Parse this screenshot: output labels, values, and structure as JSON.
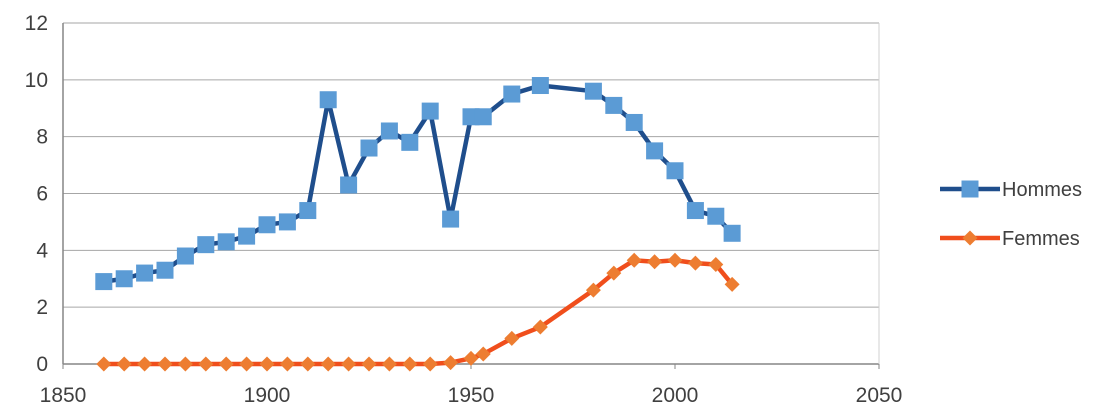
{
  "chart_data": {
    "type": "line",
    "xlim": [
      1850,
      2050
    ],
    "ylim": [
      0,
      12
    ],
    "x_ticks": [
      1850,
      1900,
      1950,
      2000,
      2050
    ],
    "y_ticks": [
      0,
      2,
      4,
      6,
      8,
      10,
      12
    ],
    "grid": "horizontal",
    "legend_position": "right",
    "series": [
      {
        "name": "Hommes",
        "color": "#1f4e8c",
        "marker_color": "#5b9bd5",
        "marker": "square",
        "x": [
          1860,
          1865,
          1870,
          1875,
          1880,
          1885,
          1890,
          1895,
          1900,
          1905,
          1910,
          1915,
          1920,
          1925,
          1930,
          1935,
          1940,
          1945,
          1950,
          1953,
          1960,
          1967,
          1980,
          1985,
          1990,
          1995,
          2000,
          2005,
          2010,
          2014
        ],
        "values": [
          2.9,
          3.0,
          3.2,
          3.3,
          3.8,
          4.2,
          4.3,
          4.5,
          4.9,
          5.0,
          5.4,
          9.3,
          6.3,
          7.6,
          8.2,
          7.8,
          8.9,
          5.1,
          8.7,
          8.7,
          9.5,
          9.8,
          9.6,
          9.1,
          8.5,
          7.5,
          6.8,
          5.4,
          5.2,
          4.6
        ]
      },
      {
        "name": "Femmes",
        "color": "#f04e1c",
        "marker_color": "#ed7d31",
        "marker": "diamond",
        "x": [
          1860,
          1865,
          1870,
          1875,
          1880,
          1885,
          1890,
          1895,
          1900,
          1905,
          1910,
          1915,
          1920,
          1925,
          1930,
          1935,
          1940,
          1945,
          1950,
          1953,
          1960,
          1967,
          1980,
          1985,
          1990,
          1995,
          2000,
          2005,
          2010,
          2014
        ],
        "values": [
          0,
          0,
          0,
          0,
          0,
          0,
          0,
          0,
          0,
          0,
          0,
          0,
          0,
          0,
          0,
          0,
          0,
          0.05,
          0.2,
          0.35,
          0.9,
          1.3,
          2.6,
          3.2,
          3.65,
          3.6,
          3.65,
          3.55,
          3.5,
          2.8
        ]
      }
    ]
  }
}
